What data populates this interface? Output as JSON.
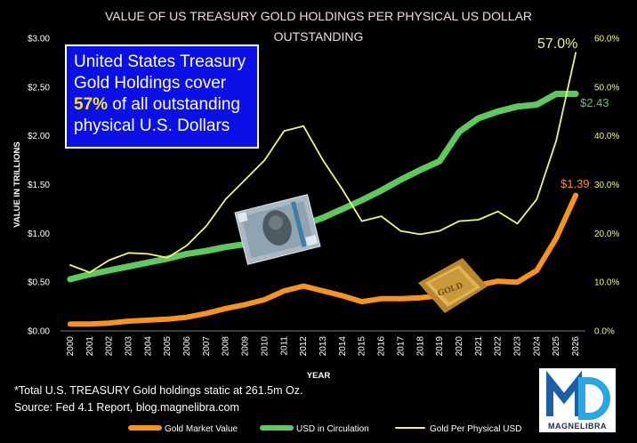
{
  "chart_data": {
    "type": "line",
    "title": "VALUE OF US TREASURY GOLD HOLDINGS  PER PHYSICAL US DOLLAR OUTSTANDING",
    "xlabel": "YEAR",
    "ylabel": "VALUE IN TRILLIONS",
    "ylim": [
      0,
      3.0
    ],
    "y2lim": [
      0,
      60
    ],
    "yticks": [
      "$0.00",
      "$0.50",
      "$1.00",
      "$1.50",
      "$2.00",
      "$2.50",
      "$3.00"
    ],
    "y2ticks": [
      "0.0%",
      "10.0%",
      "20.0%",
      "30.0%",
      "40.0%",
      "50.0%",
      "60.0%"
    ],
    "categories": [
      "2000",
      "2001",
      "2002",
      "2003",
      "2004",
      "2005",
      "2006",
      "2007",
      "2008",
      "2009",
      "2010",
      "2011",
      "2012",
      "2013",
      "2014",
      "2015",
      "2016",
      "2017",
      "2018",
      "2019",
      "2020",
      "2021",
      "2022",
      "2023",
      "2024",
      "2025",
      "2026"
    ],
    "series": [
      {
        "name": "Gold Market Value",
        "axis": "left",
        "color": "#F7941D",
        "values": [
          0.07,
          0.07,
          0.08,
          0.1,
          0.11,
          0.12,
          0.14,
          0.18,
          0.23,
          0.27,
          0.32,
          0.41,
          0.46,
          0.41,
          0.36,
          0.3,
          0.33,
          0.33,
          0.34,
          0.36,
          0.44,
          0.47,
          0.51,
          0.5,
          0.62,
          0.95,
          1.39
        ]
      },
      {
        "name": "USD in Circulation",
        "axis": "left",
        "color": "#5EC95E",
        "values": [
          0.53,
          0.58,
          0.62,
          0.66,
          0.7,
          0.74,
          0.79,
          0.82,
          0.86,
          0.89,
          0.94,
          1.01,
          1.09,
          1.16,
          1.25,
          1.34,
          1.44,
          1.55,
          1.65,
          1.74,
          2.04,
          2.18,
          2.25,
          2.3,
          2.32,
          2.43,
          2.43
        ]
      },
      {
        "name": "Gold Per Physical USD",
        "axis": "right",
        "color": "#F5F37A",
        "values": [
          13.5,
          12.0,
          14.5,
          16.0,
          15.8,
          15.0,
          17.5,
          21.5,
          27.0,
          31.0,
          35.0,
          41.0,
          42.0,
          35.0,
          29.0,
          22.5,
          23.5,
          20.5,
          19.8,
          20.5,
          22.5,
          22.8,
          24.5,
          22.0,
          27.0,
          39.0,
          57.0
        ]
      }
    ],
    "data_labels": {
      "gold_end": "$1.39",
      "usd_end": "$2.43",
      "ratio_end": "57.0%"
    },
    "legend_position": "bottom",
    "grid": false
  },
  "callout": {
    "line1": "United States Treasury",
    "line2": "Gold Holdings cover",
    "highlight": "57%",
    "line3_rest": " of all outstanding",
    "line4": "physical U.S. Dollars"
  },
  "footnote": {
    "line1": "*Total U.S. TREASURY Gold holdings static at 261.5m Oz.",
    "line2": "Source: Fed 4.1 Report, blog.magnelibra.com"
  },
  "logo": {
    "text": "MAGNELIBRA",
    "icon": "magnelibra-md-logo-icon"
  },
  "images": {
    "dollar": "hundred-dollar-bill-icon",
    "gold": "gold-bar-icon",
    "gold_bar_text": "GOLD"
  }
}
